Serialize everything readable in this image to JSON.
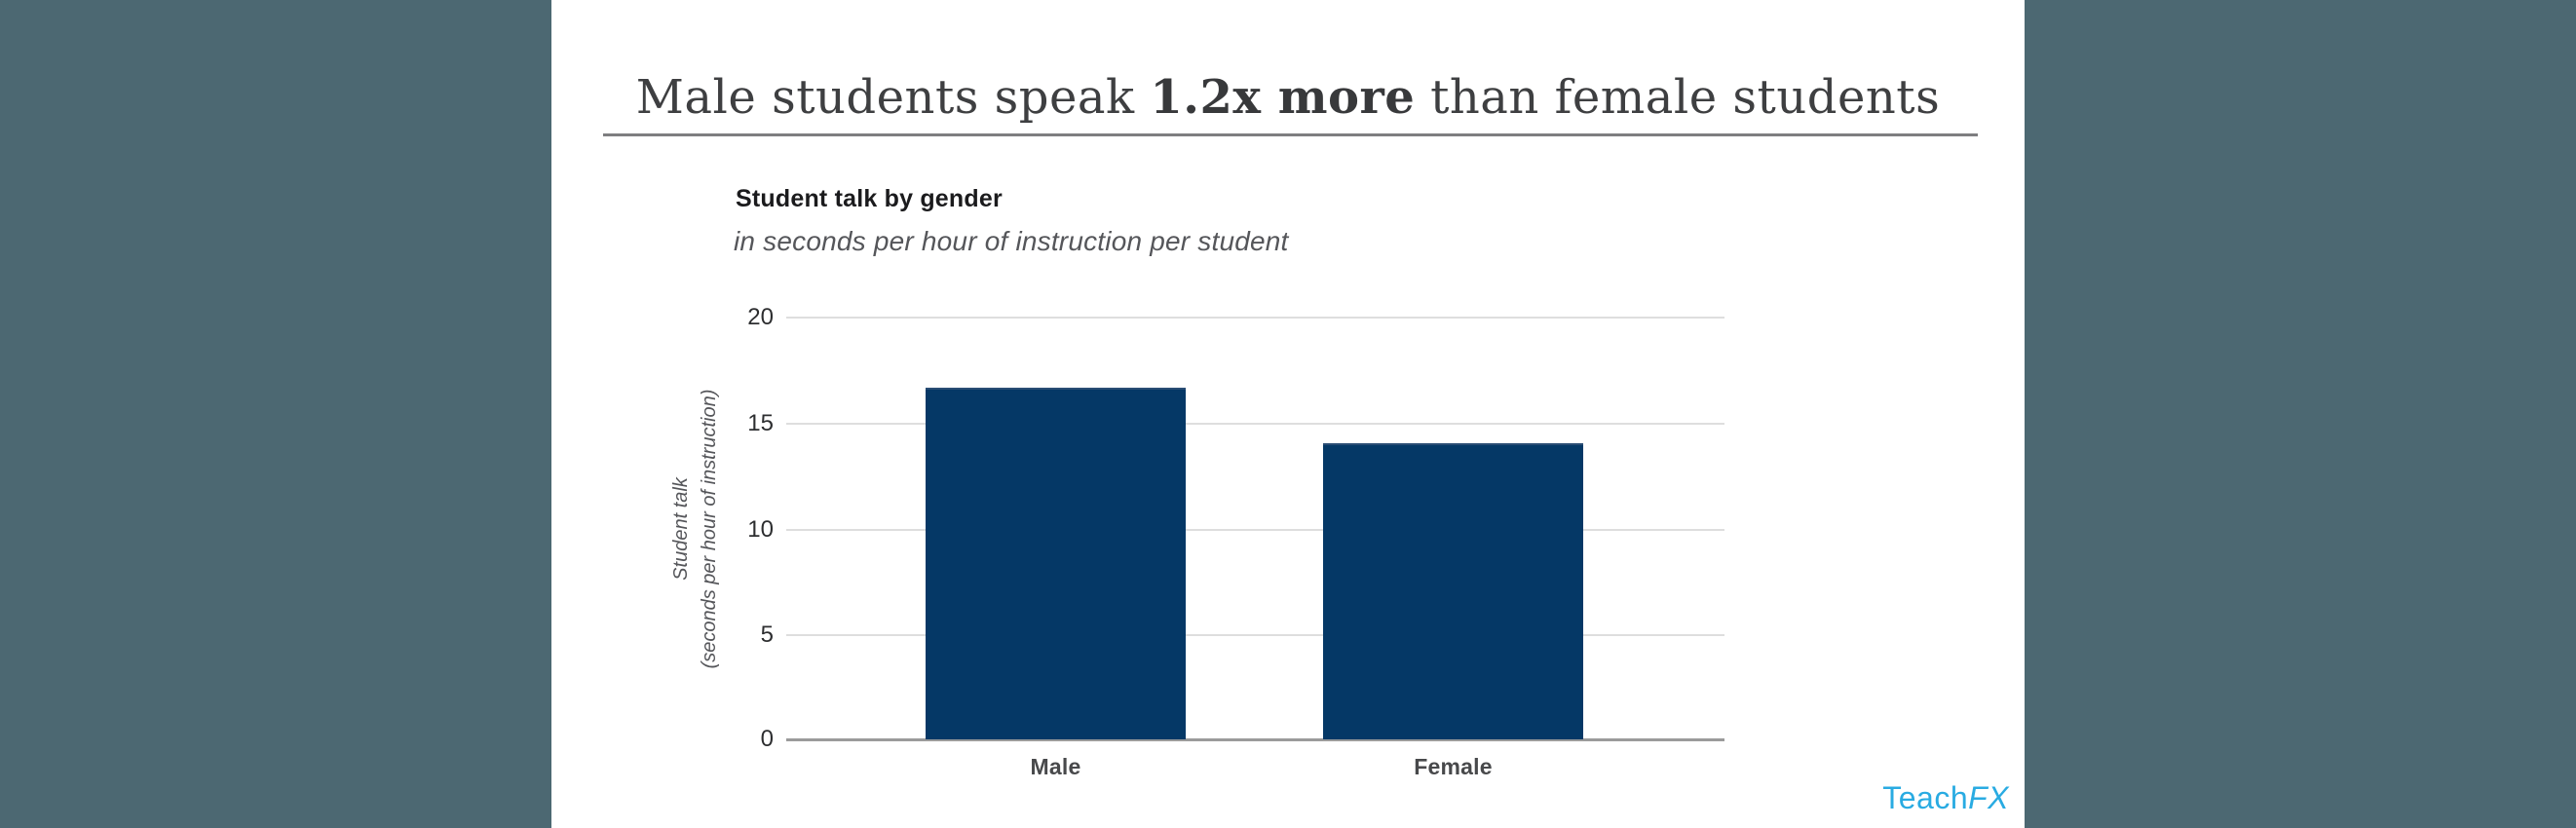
{
  "slide": {
    "title_prefix": "Male students speak ",
    "title_highlight": "1.2x more",
    "title_suffix": " than female students"
  },
  "chart": {
    "title": "Student talk by gender",
    "subtitle": "in seconds per hour of instruction per student",
    "y_axis_title_line1": "Student talk",
    "y_axis_title_line2": "(seconds per hour of instruction)"
  },
  "chart_data": {
    "type": "bar",
    "categories": [
      "Male",
      "Female"
    ],
    "values": [
      16.5,
      13.9
    ],
    "title": "Student talk by gender",
    "subtitle": "in seconds per hour of instruction per student",
    "xlabel": "",
    "ylabel": "Student talk (seconds per hour of instruction)",
    "ylim": [
      0,
      20
    ],
    "yticks": [
      0,
      5,
      10,
      15,
      20
    ],
    "grid": true,
    "legend": false,
    "bar_color": "#053866"
  },
  "branding": {
    "logo_text_regular": "Teach",
    "logo_text_italic": "FX"
  },
  "colors": {
    "background_side": "#4c6872",
    "card_background": "#ffffff",
    "bar": "#053866",
    "logo_blue": "#29abe2",
    "headline_text": "#3e3f41",
    "gridline": "#dedede",
    "axis_baseline": "#9b9b9b"
  }
}
